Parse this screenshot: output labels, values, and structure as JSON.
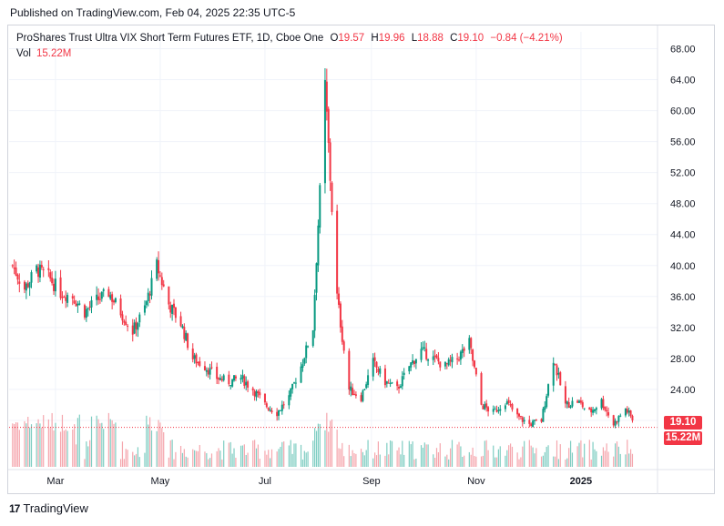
{
  "header": {
    "published": "Published on TradingView.com, Feb 04, 2025 22:35 UTC-5"
  },
  "legend": {
    "title": "ProShares Trust Ultra VIX Short Term Futures ETF, 1D, Cboe One",
    "o_label": "O",
    "o_value": "19.57",
    "h_label": "H",
    "h_value": "19.96",
    "l_label": "L",
    "l_value": "18.88",
    "c_label": "C",
    "c_value": "19.10",
    "change": "−0.84 (−4.21%)",
    "vol_label": "Vol",
    "vol_value": "15.22M"
  },
  "badges": {
    "price": "19.10",
    "volume": "15.22M"
  },
  "brand": {
    "logo": "17",
    "name": "TradingView"
  },
  "colors": {
    "up": "#089981",
    "down": "#f23645",
    "up_vol": "#7fcdc2",
    "down_vol": "#f5a6ad"
  },
  "chart_data": {
    "type": "candlestick",
    "title": "ProShares Trust Ultra VIX Short Term Futures ETF, 1D, Cboe One",
    "ylim": [
      14,
      69
    ],
    "y_ticks": [
      "68.00",
      "64.00",
      "60.00",
      "56.00",
      "52.00",
      "48.00",
      "44.00",
      "40.00",
      "36.00",
      "32.00",
      "28.00",
      "24.00",
      "20.00"
    ],
    "x_ticks": [
      {
        "label": "Mar",
        "date": "2024-03-01"
      },
      {
        "label": "May",
        "date": "2024-05-01"
      },
      {
        "label": "Jul",
        "date": "2024-07-01"
      },
      {
        "label": "Sep",
        "date": "2024-09-01"
      },
      {
        "label": "Nov",
        "date": "2024-11-01"
      },
      {
        "label": "2025",
        "date": "2025-01-01"
      }
    ],
    "x_range": [
      "2024-02-03",
      "2025-02-04"
    ],
    "last_close": 19.1,
    "last_volume_m": 15.22,
    "series": [
      {
        "date": "2024-02-05",
        "close": 40.0
      },
      {
        "date": "2024-02-12",
        "close": 37.0
      },
      {
        "date": "2024-02-19",
        "close": 39.5
      },
      {
        "date": "2024-02-26",
        "close": 38.5
      },
      {
        "date": "2024-03-04",
        "close": 36.5
      },
      {
        "date": "2024-03-11",
        "close": 36.0
      },
      {
        "date": "2024-03-18",
        "close": 34.0
      },
      {
        "date": "2024-03-25",
        "close": 35.5
      },
      {
        "date": "2024-04-01",
        "close": 36.5
      },
      {
        "date": "2024-04-08",
        "close": 34.0
      },
      {
        "date": "2024-04-15",
        "close": 31.5
      },
      {
        "date": "2024-04-22",
        "close": 34.5
      },
      {
        "date": "2024-04-29",
        "close": 40.0
      },
      {
        "date": "2024-05-06",
        "close": 35.0
      },
      {
        "date": "2024-05-13",
        "close": 32.5
      },
      {
        "date": "2024-05-20",
        "close": 28.0
      },
      {
        "date": "2024-05-27",
        "close": 27.0
      },
      {
        "date": "2024-06-03",
        "close": 25.5
      },
      {
        "date": "2024-06-10",
        "close": 25.0
      },
      {
        "date": "2024-06-17",
        "close": 25.5
      },
      {
        "date": "2024-06-24",
        "close": 24.0
      },
      {
        "date": "2024-07-01",
        "close": 22.0
      },
      {
        "date": "2024-07-08",
        "close": 21.0
      },
      {
        "date": "2024-07-15",
        "close": 23.0
      },
      {
        "date": "2024-07-22",
        "close": 27.0
      },
      {
        "date": "2024-07-29",
        "close": 32.0
      },
      {
        "date": "2024-08-05",
        "close": 63.0
      },
      {
        "date": "2024-08-12",
        "close": 36.0
      },
      {
        "date": "2024-08-19",
        "close": 24.0
      },
      {
        "date": "2024-08-26",
        "close": 23.0
      },
      {
        "date": "2024-09-02",
        "close": 27.5
      },
      {
        "date": "2024-09-09",
        "close": 25.0
      },
      {
        "date": "2024-09-16",
        "close": 24.0
      },
      {
        "date": "2024-09-23",
        "close": 27.0
      },
      {
        "date": "2024-09-30",
        "close": 29.0
      },
      {
        "date": "2024-10-07",
        "close": 28.0
      },
      {
        "date": "2024-10-14",
        "close": 27.0
      },
      {
        "date": "2024-10-21",
        "close": 28.0
      },
      {
        "date": "2024-10-28",
        "close": 30.0
      },
      {
        "date": "2024-11-04",
        "close": 22.0
      },
      {
        "date": "2024-11-11",
        "close": 21.0
      },
      {
        "date": "2024-11-18",
        "close": 22.5
      },
      {
        "date": "2024-11-25",
        "close": 20.5
      },
      {
        "date": "2024-12-02",
        "close": 19.5
      },
      {
        "date": "2024-12-09",
        "close": 20.0
      },
      {
        "date": "2024-12-16",
        "close": 28.0
      },
      {
        "date": "2024-12-23",
        "close": 22.0
      },
      {
        "date": "2024-12-30",
        "close": 22.5
      },
      {
        "date": "2025-01-06",
        "close": 21.0
      },
      {
        "date": "2025-01-13",
        "close": 22.5
      },
      {
        "date": "2025-01-20",
        "close": 19.5
      },
      {
        "date": "2025-01-27",
        "close": 21.5
      },
      {
        "date": "2025-02-03",
        "close": 19.1
      }
    ]
  }
}
